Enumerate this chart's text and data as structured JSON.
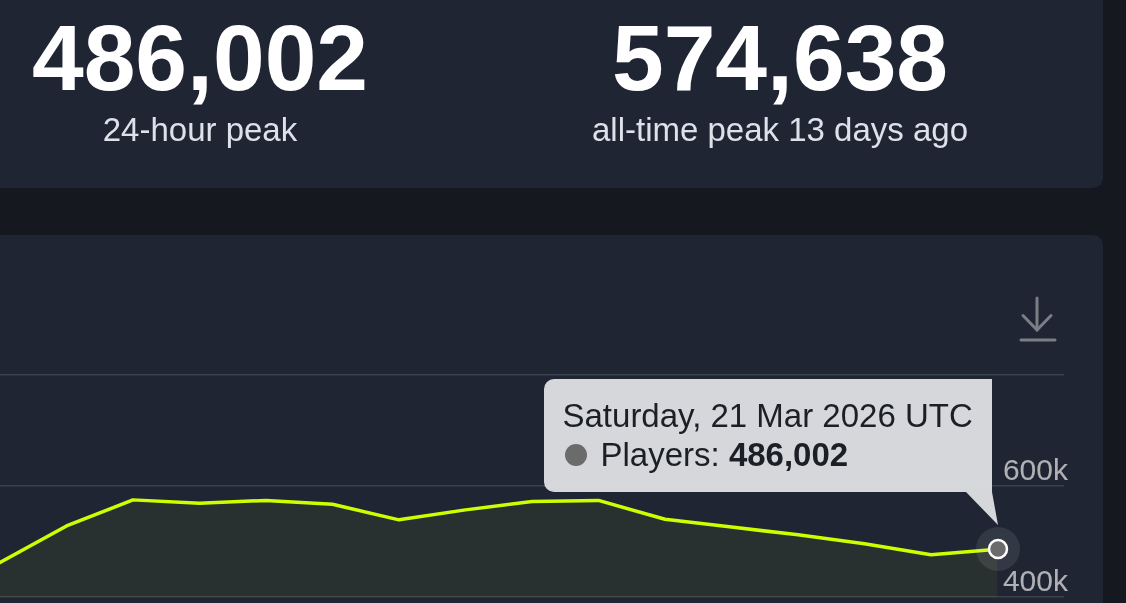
{
  "chart_data": [
    {
      "type": "other",
      "annotations": [
        "486,002",
        "24-hour peak",
        "574,638",
        "all-time peak 13 days ago"
      ]
    },
    {
      "type": "area",
      "categories": [
        null,
        null,
        null,
        null,
        null,
        null,
        null,
        null,
        null,
        null,
        null,
        null,
        null,
        null,
        null,
        null,
        null
      ],
      "series": [
        {
          "color": "#ccff00",
          "values": [
            462000,
            528000,
            575000,
            569000,
            574000,
            567000,
            539000,
            557000,
            572000,
            574000,
            540000,
            526000,
            512000,
            496000,
            476000,
            486002,
            null
          ]
        }
      ],
      "ylim": [
        400000,
        800000
      ],
      "yticks": [
        {
          "value": 800000,
          "label": null
        },
        {
          "value": 600000,
          "label": "600k"
        },
        {
          "value": 400000,
          "label": "400k"
        }
      ],
      "grid": "y",
      "tick_labels": "y",
      "annotations": [
        "Saturday, 21 Mar 2026 UTC",
        "Players: 486,002"
      ]
    }
  ]
}
